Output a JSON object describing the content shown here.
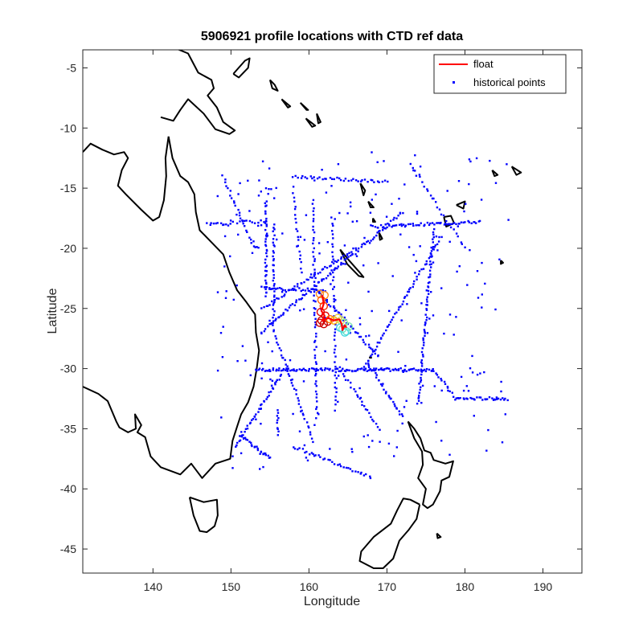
{
  "chart_data": {
    "type": "scatter",
    "title": "5906921 profile locations with CTD ref data",
    "xlabel": "Longitude",
    "ylabel": "Latitude",
    "xlim": [
      131,
      195
    ],
    "ylim": [
      -47,
      -3.5
    ],
    "xticks": [
      140,
      150,
      160,
      170,
      180,
      190
    ],
    "yticks": [
      -45,
      -40,
      -35,
      -30,
      -25,
      -20,
      -15,
      -10,
      -5
    ],
    "grid": false,
    "legend_position": "top-right",
    "colors": {
      "float": "#ff0000",
      "historical": "#0000ff",
      "coast": "#000000"
    },
    "legend": [
      {
        "label": "float",
        "style": "line",
        "color": "#ff0000"
      },
      {
        "label": "historical points",
        "style": "marker",
        "color": "#0000ff"
      }
    ],
    "series": [
      {
        "name": "float",
        "type": "line",
        "color": "#ff0000",
        "points": [
          [
            161.7,
            -23.9
          ],
          [
            161.9,
            -24.6
          ],
          [
            161.6,
            -25.2
          ],
          [
            162.0,
            -25.6
          ],
          [
            161.7,
            -26.0
          ],
          [
            162.5,
            -25.8
          ],
          [
            163.2,
            -26.0
          ],
          [
            163.9,
            -25.9
          ],
          [
            164.2,
            -26.3
          ],
          [
            164.3,
            -26.8
          ],
          [
            164.6,
            -26.4
          ],
          [
            164.8,
            -26.6
          ]
        ]
      },
      {
        "name": "historical points",
        "type": "scatter",
        "color": "#0000ff",
        "segments": [
          {
            "from": [
              153.2,
              -30.1
            ],
            "to": [
              176.0,
              -30.1
            ],
            "n": 120
          },
          {
            "from": [
              176.0,
              -30.1
            ],
            "to": [
              178.8,
              -32.5
            ],
            "n": 14
          },
          {
            "from": [
              178.8,
              -32.5
            ],
            "to": [
              185.5,
              -32.5
            ],
            "n": 30
          },
          {
            "from": [
              167.0,
              -30.0
            ],
            "to": [
              177.0,
              -19.0
            ],
            "n": 60
          },
          {
            "from": [
              168.0,
              -18.2
            ],
            "to": [
              182.0,
              -17.8
            ],
            "n": 60
          },
          {
            "from": [
              176.0,
              -18.5
            ],
            "to": [
              174.0,
              -33.0
            ],
            "n": 70
          },
          {
            "from": [
              153.8,
              -27.0
            ],
            "to": [
              172.0,
              -17.0
            ],
            "n": 90
          },
          {
            "from": [
              154.0,
              -25.0
            ],
            "to": [
              166.0,
              -20.0
            ],
            "n": 50
          },
          {
            "from": [
              154.0,
              -23.3
            ],
            "to": [
              162.0,
              -23.5
            ],
            "n": 30
          },
          {
            "from": [
              161.0,
              -23.5
            ],
            "to": [
              169.0,
              -29.0
            ],
            "n": 40
          },
          {
            "from": [
              167.5,
              -29.5
            ],
            "to": [
              172.0,
              -34.0
            ],
            "n": 30
          },
          {
            "from": [
              164.0,
              -30.0
            ],
            "to": [
              169.0,
              -35.0
            ],
            "n": 25
          },
          {
            "from": [
              155.0,
              -26.0
            ],
            "to": [
              160.5,
              -36.0
            ],
            "n": 40
          },
          {
            "from": [
              158.0,
              -36.5
            ],
            "to": [
              168.0,
              -39.0
            ],
            "n": 35
          },
          {
            "from": [
              150.5,
              -36.5
            ],
            "to": [
              156.5,
              -30.5
            ],
            "n": 40
          },
          {
            "from": [
              151.2,
              -35.5
            ],
            "to": [
              155.0,
              -37.5
            ],
            "n": 25
          },
          {
            "from": [
              147.0,
              -18.0
            ],
            "to": [
              150.0,
              -18.0
            ],
            "n": 12
          },
          {
            "from": [
              150.0,
              -17.8
            ],
            "to": [
              154.5,
              -17.8
            ],
            "n": 14
          },
          {
            "from": [
              154.5,
              -16.0
            ],
            "to": [
              154.5,
              -24.0
            ],
            "n": 40
          },
          {
            "from": [
              155.5,
              -18.0
            ],
            "to": [
              155.5,
              -26.0
            ],
            "n": 35
          },
          {
            "from": [
              149.0,
              -14.0
            ],
            "to": [
              153.0,
              -20.0
            ],
            "n": 25
          },
          {
            "from": [
              158.0,
              -14.0
            ],
            "to": [
              170.0,
              -14.5
            ],
            "n": 40
          },
          {
            "from": [
              160.5,
              -16.0
            ],
            "to": [
              161.0,
              -34.0
            ],
            "n": 60
          },
          {
            "from": [
              163.0,
              -17.5
            ],
            "to": [
              163.5,
              -33.0
            ],
            "n": 45
          },
          {
            "from": [
              156.0,
              -35.5
            ],
            "to": [
              156.0,
              -33.5
            ],
            "n": 10
          },
          {
            "from": [
              158.0,
              -15.0
            ],
            "to": [
              159.0,
              -22.0
            ],
            "n": 20
          },
          {
            "from": [
              173.0,
              -13.0
            ],
            "to": [
              180.0,
              -20.0
            ],
            "n": 25
          }
        ],
        "scatter_count": 250,
        "scatter_box": [
          148.0,
          186.0,
          -38.5,
          -12.0
        ]
      }
    ]
  },
  "profile_markers": [
    {
      "lon": 161.4,
      "lat": -23.8,
      "color": "#ff8c1a"
    },
    {
      "lon": 162.0,
      "lat": -23.9,
      "color": "#ff8c1a"
    },
    {
      "lon": 161.6,
      "lat": -24.3,
      "color": "#ff5a00"
    },
    {
      "lon": 161.9,
      "lat": -24.8,
      "color": "#ff3000"
    },
    {
      "lon": 161.5,
      "lat": -25.3,
      "color": "#e00000"
    },
    {
      "lon": 162.1,
      "lat": -25.6,
      "color": "#e00000"
    },
    {
      "lon": 161.6,
      "lat": -26.0,
      "color": "#cc0000"
    },
    {
      "lon": 161.9,
      "lat": -26.3,
      "color": "#cc0000"
    },
    {
      "lon": 162.4,
      "lat": -26.1,
      "color": "#cc0000"
    },
    {
      "lon": 161.4,
      "lat": -26.2,
      "color": "#d00000"
    },
    {
      "lon": 162.7,
      "lat": -25.9,
      "color": "#ff7000"
    },
    {
      "lon": 163.2,
      "lat": -26.0,
      "color": "#ffb000"
    },
    {
      "lon": 163.7,
      "lat": -25.8,
      "color": "#e8d040"
    },
    {
      "lon": 164.1,
      "lat": -26.0,
      "color": "#c8e060"
    },
    {
      "lon": 164.5,
      "lat": -26.2,
      "color": "#90e8a0"
    },
    {
      "lon": 164.3,
      "lat": -26.7,
      "color": "#70e8c0"
    },
    {
      "lon": 164.8,
      "lat": -26.9,
      "color": "#60e0d0"
    },
    {
      "lon": 165.1,
      "lat": -26.5,
      "color": "#80e8b0"
    },
    {
      "lon": 164.0,
      "lat": -26.6,
      "color": "#40d0e0"
    },
    {
      "lon": 164.6,
      "lat": -27.0,
      "color": "#40d8e0"
    }
  ],
  "coastlines": [
    [
      [
        142.0,
        -10.7
      ],
      [
        142.5,
        -12.5
      ],
      [
        143.5,
        -14.0
      ],
      [
        144.5,
        -14.5
      ],
      [
        145.3,
        -15.5
      ],
      [
        145.5,
        -17.0
      ],
      [
        146.0,
        -18.5
      ],
      [
        147.5,
        -19.5
      ],
      [
        149.0,
        -20.5
      ],
      [
        149.8,
        -22.0
      ],
      [
        150.8,
        -23.5
      ],
      [
        152.0,
        -24.5
      ],
      [
        153.1,
        -25.5
      ],
      [
        153.2,
        -27.0
      ],
      [
        153.6,
        -28.5
      ],
      [
        153.3,
        -30.0
      ],
      [
        152.9,
        -31.5
      ],
      [
        152.2,
        -32.8
      ],
      [
        151.3,
        -33.8
      ],
      [
        150.8,
        -34.8
      ],
      [
        150.2,
        -36.0
      ],
      [
        149.9,
        -37.5
      ],
      [
        148.0,
        -37.9
      ],
      [
        146.3,
        -39.1
      ],
      [
        144.9,
        -37.9
      ],
      [
        143.5,
        -38.8
      ],
      [
        141.0,
        -38.2
      ],
      [
        139.7,
        -37.3
      ],
      [
        139.0,
        -35.7
      ],
      [
        138.0,
        -35.3
      ],
      [
        138.5,
        -34.7
      ],
      [
        137.7,
        -33.8
      ],
      [
        137.8,
        -35.0
      ],
      [
        136.8,
        -35.3
      ],
      [
        135.7,
        -34.9
      ],
      [
        135.3,
        -34.4
      ],
      [
        134.2,
        -32.7
      ],
      [
        133.0,
        -32.1
      ],
      [
        131.0,
        -31.5
      ]
    ],
    [
      [
        131.0,
        -12.0
      ],
      [
        132.0,
        -11.3
      ],
      [
        133.5,
        -11.8
      ],
      [
        135.0,
        -12.2
      ],
      [
        136.3,
        -12.0
      ],
      [
        136.8,
        -12.5
      ],
      [
        136.0,
        -13.5
      ],
      [
        135.5,
        -14.8
      ],
      [
        136.5,
        -15.5
      ],
      [
        138.5,
        -16.8
      ],
      [
        140.0,
        -17.7
      ],
      [
        140.8,
        -17.4
      ],
      [
        141.4,
        -16.0
      ],
      [
        141.7,
        -14.0
      ],
      [
        141.6,
        -12.5
      ],
      [
        142.0,
        -10.7
      ]
    ],
    [
      [
        144.7,
        -40.7
      ],
      [
        146.5,
        -41.1
      ],
      [
        148.2,
        -40.9
      ],
      [
        148.3,
        -42.2
      ],
      [
        147.9,
        -43.1
      ],
      [
        146.9,
        -43.6
      ],
      [
        146.0,
        -43.5
      ],
      [
        145.2,
        -42.2
      ],
      [
        144.7,
        -40.7
      ]
    ],
    [
      [
        172.7,
        -34.4
      ],
      [
        173.5,
        -35.0
      ],
      [
        174.3,
        -35.8
      ],
      [
        174.8,
        -36.8
      ],
      [
        175.6,
        -37.0
      ],
      [
        176.0,
        -37.6
      ],
      [
        177.5,
        -37.9
      ],
      [
        178.5,
        -37.7
      ],
      [
        178.0,
        -39.0
      ],
      [
        177.0,
        -39.3
      ],
      [
        176.8,
        -40.2
      ],
      [
        175.9,
        -41.3
      ],
      [
        175.2,
        -41.6
      ],
      [
        174.6,
        -41.3
      ],
      [
        175.0,
        -40.0
      ],
      [
        174.0,
        -39.1
      ],
      [
        174.6,
        -38.0
      ],
      [
        174.5,
        -36.9
      ],
      [
        173.5,
        -35.8
      ],
      [
        172.7,
        -34.4
      ]
    ],
    [
      [
        174.2,
        -41.3
      ],
      [
        173.8,
        -42.5
      ],
      [
        172.8,
        -43.4
      ],
      [
        171.6,
        -44.3
      ],
      [
        170.8,
        -45.8
      ],
      [
        169.5,
        -46.6
      ],
      [
        168.3,
        -46.6
      ],
      [
        166.5,
        -46.0
      ],
      [
        166.7,
        -45.2
      ],
      [
        168.3,
        -44.0
      ],
      [
        170.5,
        -42.9
      ],
      [
        171.3,
        -41.8
      ],
      [
        172.1,
        -40.8
      ],
      [
        173.0,
        -40.9
      ],
      [
        174.2,
        -41.3
      ]
    ],
    [
      [
        141.0,
        -2.6
      ],
      [
        143.0,
        -3.4
      ],
      [
        144.5,
        -3.8
      ],
      [
        145.8,
        -5.4
      ],
      [
        147.5,
        -6.0
      ],
      [
        147.8,
        -6.7
      ],
      [
        147.0,
        -7.3
      ],
      [
        148.2,
        -8.3
      ],
      [
        149.0,
        -9.5
      ],
      [
        150.5,
        -10.2
      ],
      [
        149.8,
        -10.5
      ],
      [
        148.0,
        -10.1
      ],
      [
        146.5,
        -8.8
      ],
      [
        144.5,
        -7.6
      ],
      [
        143.5,
        -8.5
      ],
      [
        142.6,
        -9.4
      ],
      [
        141.0,
        -9.1
      ]
    ],
    [
      [
        164.0,
        -20.1
      ],
      [
        165.0,
        -20.9
      ],
      [
        166.5,
        -22.0
      ],
      [
        167.0,
        -22.4
      ],
      [
        166.4,
        -22.3
      ],
      [
        164.9,
        -21.3
      ],
      [
        164.0,
        -20.1
      ]
    ],
    [
      [
        150.3,
        -5.5
      ],
      [
        151.8,
        -4.4
      ],
      [
        152.4,
        -4.2
      ],
      [
        152.2,
        -5.0
      ],
      [
        151.0,
        -5.8
      ],
      [
        150.3,
        -5.5
      ]
    ],
    [
      [
        155.0,
        -6.0
      ],
      [
        155.6,
        -6.4
      ],
      [
        156.0,
        -6.9
      ],
      [
        155.3,
        -6.7
      ],
      [
        155.0,
        -6.0
      ]
    ],
    [
      [
        156.5,
        -7.6
      ],
      [
        157.6,
        -8.2
      ],
      [
        157.3,
        -8.3
      ],
      [
        156.5,
        -7.6
      ]
    ],
    [
      [
        158.9,
        -7.9
      ],
      [
        159.9,
        -8.5
      ],
      [
        159.7,
        -8.5
      ],
      [
        158.9,
        -7.9
      ]
    ],
    [
      [
        159.6,
        -9.2
      ],
      [
        160.8,
        -9.8
      ],
      [
        160.4,
        -9.9
      ],
      [
        159.6,
        -9.2
      ]
    ],
    [
      [
        161.0,
        -8.8
      ],
      [
        161.5,
        -9.5
      ],
      [
        161.2,
        -9.6
      ],
      [
        161.0,
        -8.8
      ]
    ],
    [
      [
        166.6,
        -14.6
      ],
      [
        167.2,
        -15.2
      ],
      [
        167.0,
        -15.6
      ],
      [
        166.6,
        -14.6
      ]
    ],
    [
      [
        167.6,
        -16.1
      ],
      [
        168.3,
        -16.6
      ],
      [
        167.9,
        -16.6
      ],
      [
        167.6,
        -16.1
      ]
    ],
    [
      [
        168.2,
        -17.5
      ],
      [
        168.5,
        -17.8
      ],
      [
        168.2,
        -17.8
      ],
      [
        168.2,
        -17.5
      ]
    ],
    [
      [
        169.0,
        -18.7
      ],
      [
        169.4,
        -19.2
      ],
      [
        169.1,
        -19.3
      ],
      [
        169.0,
        -18.7
      ]
    ],
    [
      [
        177.3,
        -17.4
      ],
      [
        178.2,
        -17.3
      ],
      [
        178.6,
        -17.9
      ],
      [
        177.6,
        -18.2
      ],
      [
        177.3,
        -17.4
      ]
    ],
    [
      [
        178.9,
        -16.4
      ],
      [
        180.0,
        -16.1
      ],
      [
        179.8,
        -16.7
      ],
      [
        178.9,
        -16.4
      ]
    ],
    [
      [
        184.6,
        -21.0
      ],
      [
        184.9,
        -21.2
      ],
      [
        184.6,
        -21.3
      ],
      [
        184.6,
        -21.0
      ]
    ],
    [
      [
        183.5,
        -13.5
      ],
      [
        184.2,
        -13.9
      ],
      [
        183.8,
        -14.0
      ],
      [
        183.5,
        -13.5
      ]
    ],
    [
      [
        186.0,
        -13.2
      ],
      [
        187.2,
        -13.7
      ],
      [
        186.6,
        -13.9
      ],
      [
        186.0,
        -13.2
      ]
    ],
    [
      [
        176.4,
        -43.7
      ],
      [
        176.9,
        -44.0
      ],
      [
        176.5,
        -44.1
      ],
      [
        176.4,
        -43.7
      ]
    ],
    [
      [
        167.8,
        -29.0
      ],
      [
        168.0,
        -29.1
      ],
      [
        167.8,
        -29.1
      ],
      [
        167.8,
        -29.0
      ]
    ]
  ]
}
